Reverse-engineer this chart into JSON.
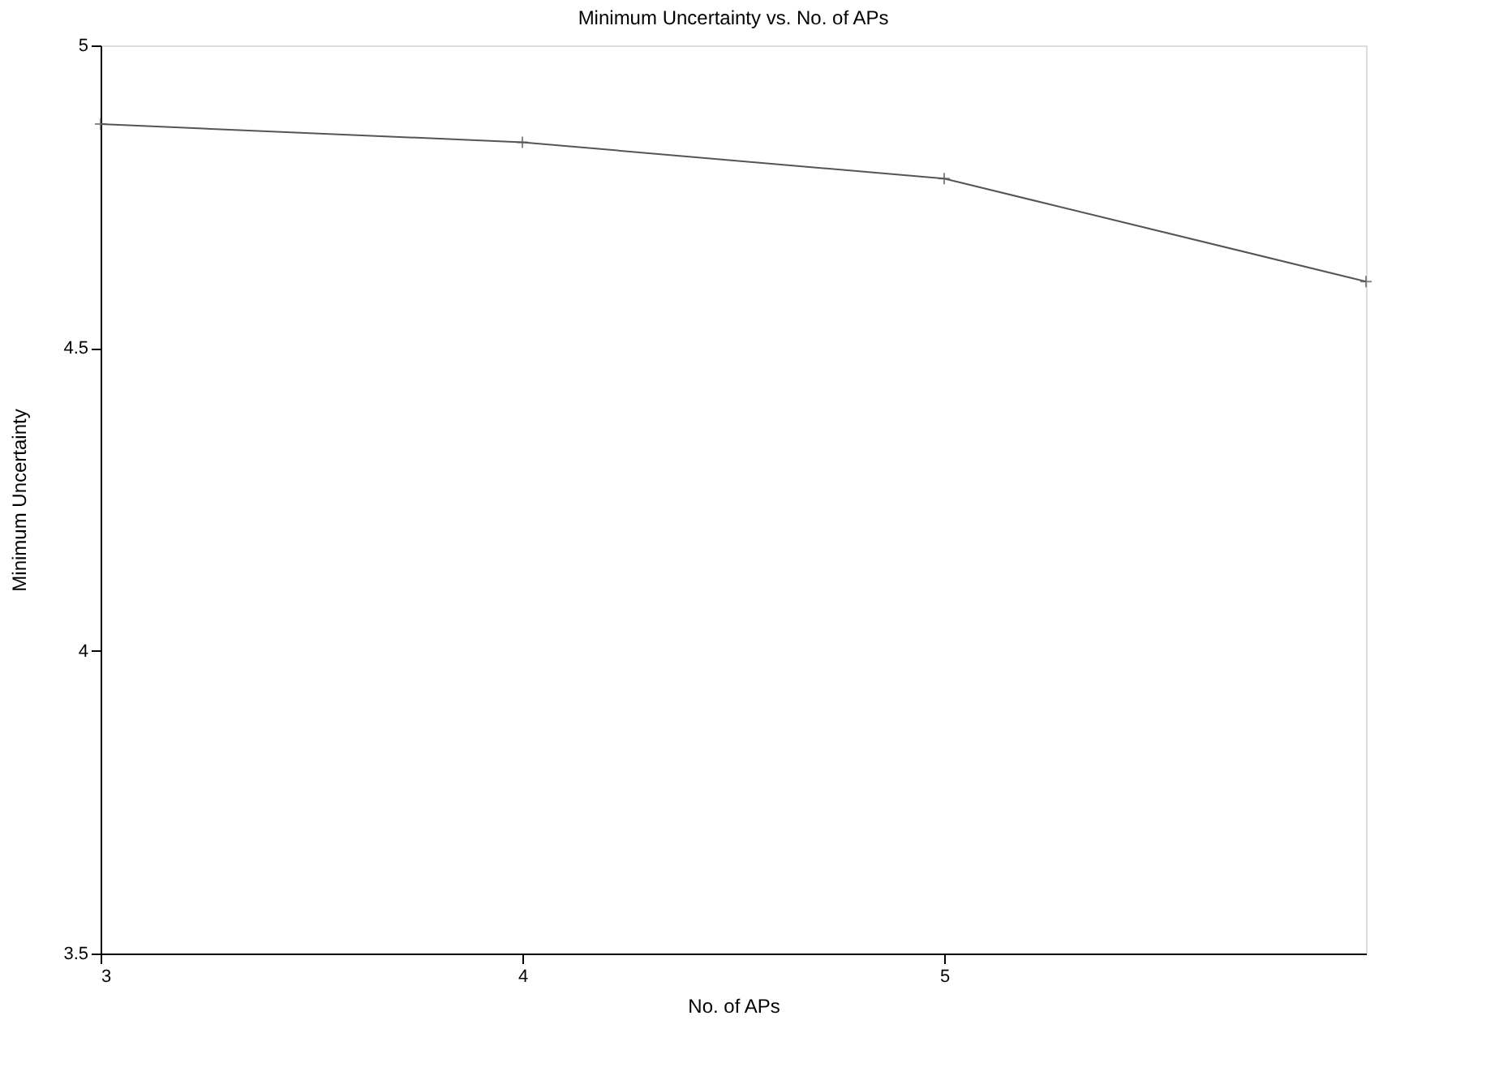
{
  "chart_data": {
    "type": "line",
    "title": "Minimum Uncertainty vs. No. of APs",
    "xlabel": "No. of APs",
    "ylabel": "Minimum Uncertainty",
    "x": [
      3,
      4,
      5,
      6
    ],
    "series": [
      {
        "color": "#555555",
        "values": [
          4.87,
          4.84,
          4.78,
          4.61
        ]
      }
    ],
    "xlim": [
      3,
      6
    ],
    "xticks": [
      3,
      4,
      5
    ],
    "ylim": [
      3.5,
      5
    ],
    "yticks": [
      3.5,
      4,
      4.5,
      5
    ],
    "marker": "cross",
    "line_style": "solid",
    "grid": false,
    "legend": false
  }
}
